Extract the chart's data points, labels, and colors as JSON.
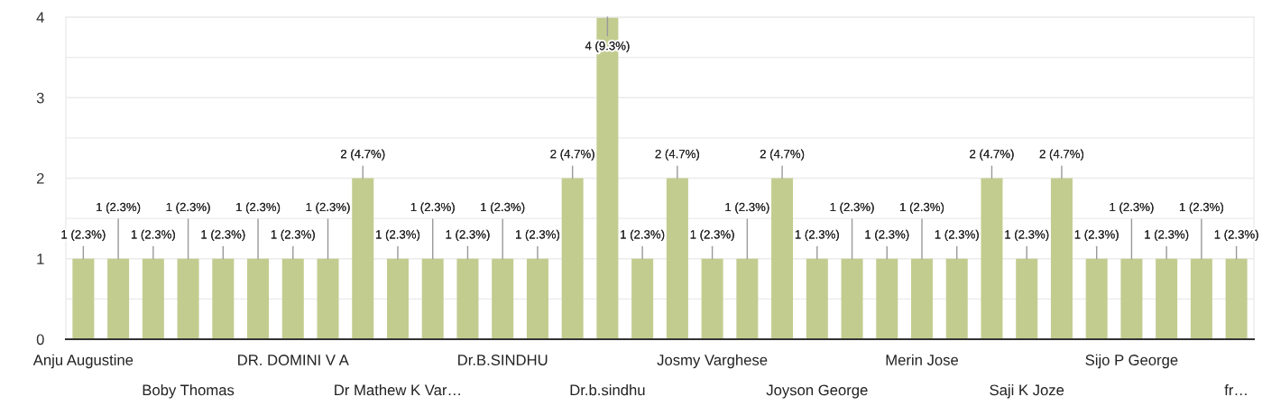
{
  "chart_data": {
    "type": "bar",
    "categories": [
      "Anju Augustine",
      null,
      null,
      "Boby Thomas",
      null,
      null,
      "DR. DOMINI V A",
      null,
      null,
      "Dr Mathew K Var…",
      null,
      null,
      "Dr.B.SINDHU",
      null,
      null,
      "Dr.b.sindhu",
      null,
      null,
      "Josmy Varghese",
      null,
      null,
      "Joyson George",
      null,
      null,
      "Merin Jose",
      null,
      null,
      "Saji K Joze",
      null,
      null,
      "Sijo P George",
      null,
      null,
      "fr…"
    ],
    "values": [
      1,
      1,
      1,
      1,
      1,
      1,
      1,
      1,
      2,
      1,
      1,
      1,
      1,
      1,
      2,
      4,
      1,
      2,
      1,
      1,
      2,
      1,
      1,
      1,
      1,
      1,
      2,
      1,
      2,
      1,
      1,
      1,
      1,
      1
    ],
    "value_labels": [
      "1 (2.3%)",
      "1 (2.3%)",
      "1 (2.3%)",
      "1 (2.3%)",
      "1 (2.3%)",
      "1 (2.3%)",
      "1 (2.3%)",
      "1 (2.3%)",
      "2 (4.7%)",
      "1 (2.3%)",
      "1 (2.3%)",
      "1 (2.3%)",
      "1 (2.3%)",
      "1 (2.3%)",
      "2 (4.7%)",
      "4 (9.3%)",
      "1 (2.3%)",
      "2 (4.7%)",
      "1 (2.3%)",
      "1 (2.3%)",
      "2 (4.7%)",
      "1 (2.3%)",
      "1 (2.3%)",
      "1 (2.3%)",
      "1 (2.3%)",
      "1 (2.3%)",
      "2 (4.7%)",
      "1 (2.3%)",
      "2 (4.7%)",
      "1 (2.3%)",
      "1 (2.3%)",
      "1 (2.3%)",
      "1 (2.3%)",
      "1 (2.3%)"
    ],
    "color": "#c2cc8f",
    "ylim": [
      0,
      4
    ],
    "yticks": [
      0,
      {
        "value": 0.5,
        "label": null
      },
      1,
      {
        "value": 1.5,
        "label": null
      },
      2,
      {
        "value": 2.5,
        "label": null
      },
      3,
      {
        "value": 3.5,
        "label": null
      },
      4
    ],
    "grid": "y"
  }
}
